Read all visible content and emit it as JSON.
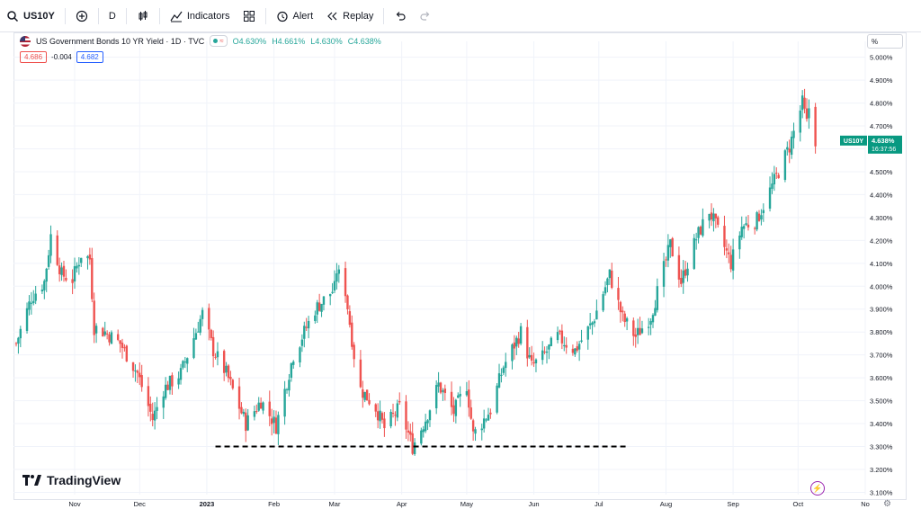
{
  "toolbar": {
    "symbol": "US10Y",
    "interval": "D",
    "indicators_label": "Indicators",
    "alert_label": "Alert",
    "replay_label": "Replay"
  },
  "legend": {
    "title": "US Government Bonds 10 YR Yield · 1D · TVC",
    "open": "O4.630%",
    "high": "H4.661%",
    "low": "L4.630%",
    "close": "C4.638%"
  },
  "quote": {
    "bid": "4.686",
    "spread": "-0.004",
    "ask": "4.682"
  },
  "unit_label": "%",
  "price_tag": {
    "symbol": "US10Y",
    "price": "4.638%",
    "countdown": "16:37:56"
  },
  "brand": "TradingView",
  "colors": {
    "up": "#26a69a",
    "down": "#ef5350",
    "accent": "#2962ff"
  },
  "chart_data": {
    "type": "candlestick",
    "title": "US Government Bonds 10 YR Yield · 1D · TVC",
    "ylim": [
      3.09,
      5.03
    ],
    "y_ticks": [
      "3.100%",
      "3.200%",
      "3.300%",
      "3.400%",
      "3.500%",
      "3.600%",
      "3.700%",
      "3.800%",
      "3.900%",
      "4.000%",
      "4.100%",
      "4.200%",
      "4.300%",
      "4.400%",
      "4.500%",
      "4.600%",
      "4.700%",
      "4.800%",
      "4.900%",
      "5.000%"
    ],
    "x_ticks": [
      {
        "label": "Nov",
        "date": "2022-11-01"
      },
      {
        "label": "Dec",
        "date": "2022-12-01"
      },
      {
        "label": "2023",
        "date": "2023-01-01"
      },
      {
        "label": "Feb",
        "date": "2023-02-01"
      },
      {
        "label": "Mar",
        "date": "2023-03-01"
      },
      {
        "label": "Apr",
        "date": "2023-04-01"
      },
      {
        "label": "May",
        "date": "2023-05-01"
      },
      {
        "label": "Jun",
        "date": "2023-06-01"
      },
      {
        "label": "Jul",
        "date": "2023-07-01"
      },
      {
        "label": "Aug",
        "date": "2023-08-01"
      },
      {
        "label": "Sep",
        "date": "2023-09-01"
      },
      {
        "label": "Oct",
        "date": "2023-10-01"
      },
      {
        "label": "No",
        "date": "2023-11-01"
      }
    ],
    "x_range": [
      "2022-10-05",
      "2023-11-01"
    ],
    "support_line": {
      "y": 3.3,
      "from": "2023-01-05",
      "to": "2023-07-15",
      "style": "dashed"
    },
    "close_path": [
      [
        "2022-10-05",
        3.75
      ],
      [
        "2022-10-12",
        3.95
      ],
      [
        "2022-10-18",
        4.02
      ],
      [
        "2022-10-21",
        4.22
      ],
      [
        "2022-10-26",
        4.05
      ],
      [
        "2022-10-31",
        4.03
      ],
      [
        "2022-11-04",
        4.14
      ],
      [
        "2022-11-08",
        4.12
      ],
      [
        "2022-11-10",
        3.82
      ],
      [
        "2022-11-15",
        3.8
      ],
      [
        "2022-11-22",
        3.75
      ],
      [
        "2022-11-30",
        3.62
      ],
      [
        "2022-12-07",
        3.42
      ],
      [
        "2022-12-12",
        3.55
      ],
      [
        "2022-12-20",
        3.62
      ],
      [
        "2022-12-30",
        3.88
      ],
      [
        "2023-01-04",
        3.72
      ],
      [
        "2023-01-10",
        3.62
      ],
      [
        "2023-01-19",
        3.4
      ],
      [
        "2023-01-26",
        3.5
      ],
      [
        "2023-02-02",
        3.39
      ],
      [
        "2023-02-10",
        3.7
      ],
      [
        "2023-02-20",
        3.9
      ],
      [
        "2023-03-01",
        3.99
      ],
      [
        "2023-03-02",
        4.07
      ],
      [
        "2023-03-06",
        3.98
      ],
      [
        "2023-03-10",
        3.7
      ],
      [
        "2023-03-13",
        3.55
      ],
      [
        "2023-03-20",
        3.47
      ],
      [
        "2023-03-24",
        3.38
      ],
      [
        "2023-03-31",
        3.47
      ],
      [
        "2023-04-06",
        3.3
      ],
      [
        "2023-04-12",
        3.42
      ],
      [
        "2023-04-18",
        3.57
      ],
      [
        "2023-04-25",
        3.45
      ],
      [
        "2023-05-01",
        3.57
      ],
      [
        "2023-05-04",
        3.35
      ],
      [
        "2023-05-12",
        3.46
      ],
      [
        "2023-05-18",
        3.65
      ],
      [
        "2023-05-26",
        3.8
      ],
      [
        "2023-05-31",
        3.65
      ],
      [
        "2023-06-05",
        3.69
      ],
      [
        "2023-06-12",
        3.78
      ],
      [
        "2023-06-20",
        3.72
      ],
      [
        "2023-06-28",
        3.84
      ],
      [
        "2023-07-06",
        4.05
      ],
      [
        "2023-07-12",
        3.86
      ],
      [
        "2023-07-18",
        3.78
      ],
      [
        "2023-07-25",
        3.87
      ],
      [
        "2023-08-03",
        4.18
      ],
      [
        "2023-08-08",
        4.02
      ],
      [
        "2023-08-15",
        4.21
      ],
      [
        "2023-08-21",
        4.33
      ],
      [
        "2023-08-25",
        4.24
      ],
      [
        "2023-08-31",
        4.1
      ],
      [
        "2023-09-05",
        4.26
      ],
      [
        "2023-09-12",
        4.29
      ],
      [
        "2023-09-21",
        4.48
      ],
      [
        "2023-09-27",
        4.61
      ],
      [
        "2023-10-03",
        4.8
      ],
      [
        "2023-10-05",
        4.71
      ],
      [
        "2023-10-06",
        4.78
      ],
      [
        "2023-10-09",
        4.64
      ]
    ]
  }
}
